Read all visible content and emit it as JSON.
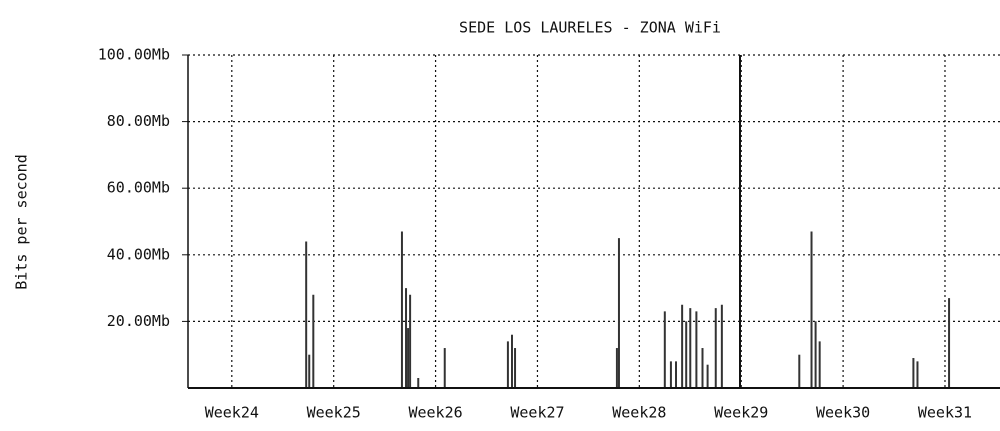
{
  "chart_data": {
    "type": "bar",
    "title": "SEDE LOS LAURELES - ZONA WiFi",
    "y_label": "Bits per second",
    "color": "#333333",
    "x": [
      24.73,
      24.76,
      24.8,
      25.67,
      25.71,
      25.73,
      25.75,
      25.83,
      26.09,
      26.71,
      26.75,
      26.78,
      27.78,
      27.8,
      28.25,
      28.31,
      28.36,
      28.42,
      28.46,
      28.5,
      28.56,
      28.62,
      28.67,
      28.75,
      28.81,
      29.57,
      29.69,
      29.73,
      29.77,
      30.69,
      30.73,
      31.04
    ],
    "values": [
      44,
      10,
      28,
      47,
      30,
      18,
      28,
      3,
      12,
      14,
      16,
      12,
      12,
      45,
      23,
      8,
      8,
      25,
      20,
      24,
      23,
      12,
      7,
      24,
      25,
      10,
      47,
      20,
      14,
      9,
      8,
      27
    ],
    "xlim": [
      23.57,
      31.54
    ],
    "xticks": [
      {
        "value": 24,
        "label": "Week24"
      },
      {
        "value": 25,
        "label": "Week25"
      },
      {
        "value": 26,
        "label": "Week26"
      },
      {
        "value": 27,
        "label": "Week27"
      },
      {
        "value": 28,
        "label": "Week28"
      },
      {
        "value": 29,
        "label": "Week29"
      },
      {
        "value": 30,
        "label": "Week30"
      },
      {
        "value": 31,
        "label": "Week31"
      }
    ],
    "ylim": [
      0,
      100
    ],
    "yticks": [
      {
        "value": 20,
        "label": "20.00Mb"
      },
      {
        "value": 40,
        "label": "40.00Mb"
      },
      {
        "value": 60,
        "label": "60.00Mb"
      },
      {
        "value": 80,
        "label": "80.00Mb"
      },
      {
        "value": 100,
        "label": "100.00Mb"
      }
    ],
    "grid": true
  }
}
